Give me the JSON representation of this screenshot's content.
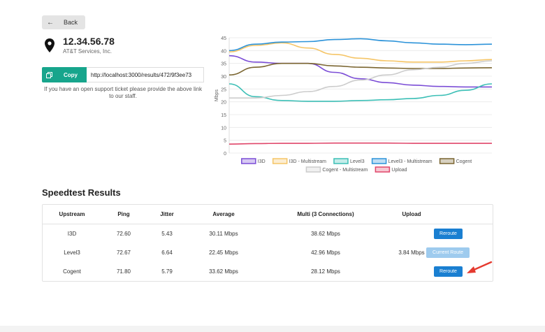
{
  "back": {
    "label": "Back"
  },
  "location": {
    "ip": "12.34.56.78",
    "isp": "AT&T Services, Inc."
  },
  "share": {
    "copy_label": "Copy",
    "url": "http://localhost:3000/results/472/9f3ee73",
    "support_note": "If you have an open support ticket please provide the above link to our staff."
  },
  "chart_data": {
    "type": "line",
    "ylabel": "Mbps",
    "ylim": [
      0,
      45
    ],
    "yticks": [
      0,
      5,
      10,
      15,
      20,
      25,
      30,
      35,
      40,
      45
    ],
    "x": [
      0,
      1,
      2,
      3,
      4,
      5,
      6,
      7,
      8,
      9,
      10
    ],
    "grid": true,
    "legend_position": "bottom",
    "series": [
      {
        "name": "I3D",
        "color": "#7b4dd6",
        "values": [
          38,
          35.5,
          35,
          35,
          31.5,
          29,
          27.5,
          26.5,
          26,
          25.8,
          25.8
        ]
      },
      {
        "name": "I3D - Multistream",
        "color": "#f5c567",
        "values": [
          39.5,
          42,
          43,
          41,
          38.5,
          37,
          36,
          35.5,
          35.5,
          36,
          36.5
        ]
      },
      {
        "name": "Level3",
        "color": "#3cbfb6",
        "values": [
          27,
          22,
          20.5,
          20.2,
          20.2,
          20.5,
          20.8,
          21.3,
          22.5,
          24.5,
          27
        ]
      },
      {
        "name": "Level3 - Multistream",
        "color": "#2c93d9",
        "values": [
          40,
          42.5,
          43.3,
          43.5,
          44.3,
          44.6,
          43.8,
          43,
          42.5,
          42.3,
          42.5
        ]
      },
      {
        "name": "Cogent",
        "color": "#7a6530",
        "values": [
          30.5,
          33.5,
          35,
          35,
          34,
          33.5,
          33.2,
          33,
          33,
          33.2,
          33.3
        ]
      },
      {
        "name": "Cogent - Multistream",
        "color": "#cccccc",
        "values": [
          21.5,
          21.5,
          22.5,
          24,
          26,
          28.5,
          30.5,
          32.5,
          33.5,
          35,
          36
        ]
      },
      {
        "name": "Upload",
        "color": "#e0466a",
        "values": [
          3.5,
          3.7,
          3.8,
          3.8,
          3.9,
          3.9,
          3.9,
          3.8,
          3.8,
          3.8,
          3.8
        ]
      }
    ]
  },
  "results": {
    "title": "Speedtest Results",
    "headers": {
      "upstream": "Upstream",
      "ping": "Ping",
      "jitter": "Jitter",
      "average": "Average",
      "multi": "Multi (3 Connections)",
      "upload": "Upload"
    },
    "rows": [
      {
        "upstream": "I3D",
        "ping": "72.60",
        "jitter": "5.43",
        "average": "30.11 Mbps",
        "multi": "38.62 Mbps",
        "upload": "",
        "action": "Reroute"
      },
      {
        "upstream": "Level3",
        "ping": "72.67",
        "jitter": "6.64",
        "average": "22.45 Mbps",
        "multi": "42.96 Mbps",
        "upload": "3.84 Mbps",
        "action": "Current Route"
      },
      {
        "upstream": "Cogent",
        "ping": "71.80",
        "jitter": "5.79",
        "average": "33.62 Mbps",
        "multi": "28.12 Mbps",
        "upload": "",
        "action": "Reroute"
      }
    ]
  },
  "icons": {
    "back": "arrow-left-icon",
    "location": "map-pin-icon",
    "copy": "copy-icon",
    "annotation": "red-arrow-icon"
  }
}
